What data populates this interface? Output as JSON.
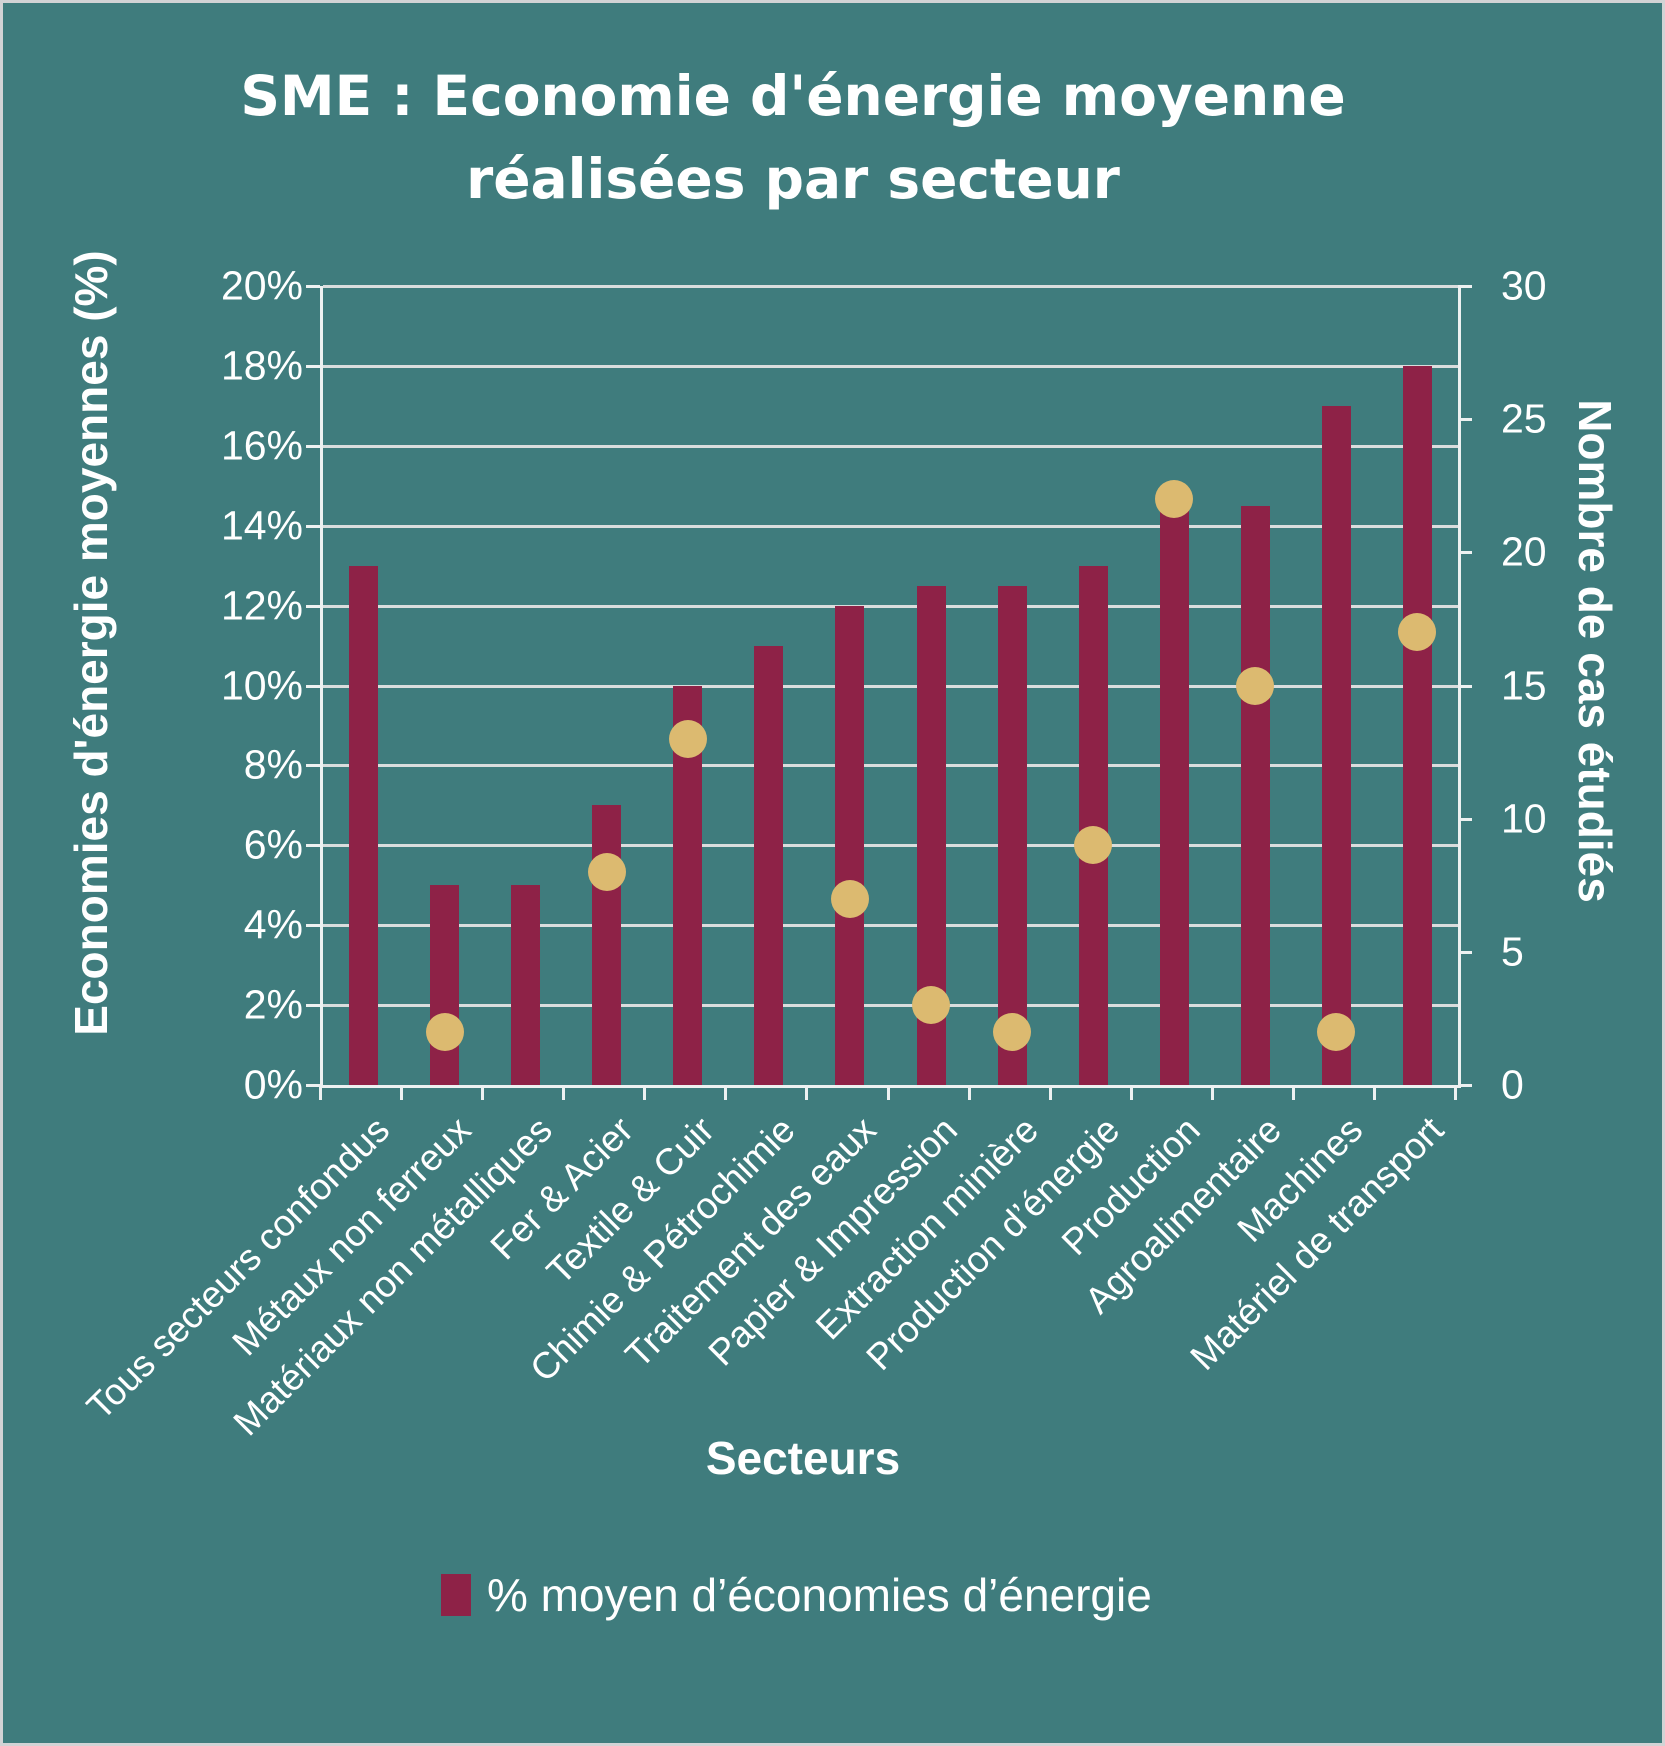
{
  "header": {
    "title_lines": [
      "SME : Economie d'énergie moyenne",
      "réalisées par secteur"
    ]
  },
  "axes": {
    "left": {
      "title": "Economies d'énergie moyennes (%)",
      "tick_labels": [
        "20%",
        "18%",
        "16%",
        "14%",
        "12%",
        "10%",
        "8%",
        "6%",
        "4%",
        "2%",
        "0%"
      ]
    },
    "right": {
      "title": "Nombre de cas étudiés",
      "tick_labels": [
        "30",
        "25",
        "20",
        "15",
        "10",
        "5",
        "0"
      ]
    },
    "x": {
      "title": "Secteurs"
    }
  },
  "legend": {
    "items": [
      {
        "label": "% moyen d’économies d’énergie",
        "color": "#8e2247"
      }
    ]
  },
  "colors": {
    "background": "#3f7c7d",
    "bar": "#8e2247",
    "dot": "#dcba70",
    "gridline": "#d9dddd",
    "axis_line": "#edf1f1",
    "text": "#ffffff",
    "frame_border": "#d2d3d5"
  },
  "chart_data": {
    "type": "bar",
    "title": "SME : Economie d'énergie moyenne réalisées par secteur",
    "xlabel": "Secteurs",
    "ylabel_left": "Economies d'énergie moyennes (%)",
    "ylabel_right": "Nombre de cas étudiés",
    "grid": true,
    "legend_position": "bottom",
    "categories": [
      "Tous secteurs confondus",
      "Métaux non ferreux",
      "Matériaux non métalliques",
      "Fer & Acier",
      "Textile & Cuir",
      "Chimie & Pétrochimie",
      "Traitement des eaux",
      "Papier & Impression",
      "Extraction minière",
      "Production d’énergie",
      "Production",
      "Agroalimentaire",
      "Machines",
      "Matériel de transport"
    ],
    "series": [
      {
        "name": "% moyen d’économies d’énergie",
        "type": "bar",
        "axis": "left",
        "unit": "%",
        "values": [
          13,
          5,
          5,
          7,
          10,
          11,
          12,
          12.5,
          12.5,
          13,
          14.5,
          14.5,
          17,
          18
        ]
      },
      {
        "name": "Nombre de cas étudiés",
        "type": "scatter",
        "axis": "right",
        "unit": "cas",
        "values": [
          null,
          2,
          null,
          8,
          13,
          null,
          7,
          3,
          2,
          9,
          22,
          15,
          2,
          17
        ]
      }
    ],
    "left_axis": {
      "min": 0,
      "max": 20,
      "step": 2,
      "format": "percent"
    },
    "right_axis": {
      "min": 0,
      "max": 30,
      "step": 5
    }
  }
}
